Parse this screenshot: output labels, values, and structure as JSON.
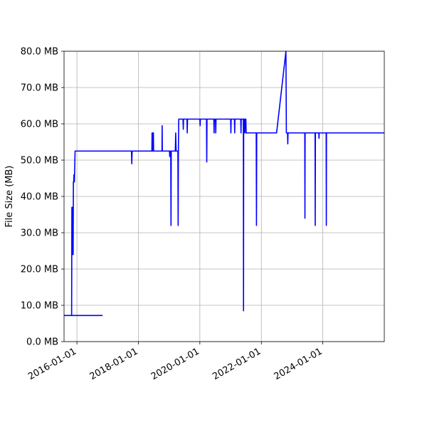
{
  "chart_data": {
    "type": "line",
    "title": "",
    "xlabel": "",
    "ylabel": "File Size (MB)",
    "x_axis_type": "date",
    "xlim": [
      "2015-08-01",
      "2026-01-01"
    ],
    "ylim": [
      0,
      80
    ],
    "grid": true,
    "legend": "none",
    "color": "#0000ff",
    "y_ticks": [
      0,
      10,
      20,
      30,
      40,
      50,
      60,
      70,
      80
    ],
    "y_tick_labels": [
      "0.0 MB",
      "10.0 MB",
      "20.0 MB",
      "30.0 MB",
      "40.0 MB",
      "50.0 MB",
      "60.0 MB",
      "70.0 MB",
      "80.0 MB"
    ],
    "x_ticks": [
      "2016-01-01",
      "2018-01-01",
      "2020-01-01",
      "2022-01-01",
      "2024-01-01"
    ],
    "x_tick_labels": [
      "2016-01-01",
      "2018-01-01",
      "2020-01-01",
      "2022-01-01",
      "2024-01-01"
    ],
    "series": [
      {
        "x": [
          "2015-08-01",
          "2016-10-28",
          "2015-10-30",
          "2015-11-02",
          "2015-11-05",
          "2015-11-08",
          "2015-11-11",
          "2015-11-14",
          "2015-11-17",
          "2015-11-20",
          "2015-11-24",
          "2015-11-27",
          "2015-12-02",
          "2015-12-10",
          "2015-12-28",
          "2016-01-15",
          "2016-01-20",
          "2016-01-25",
          "2016-02-01",
          "2016-02-10",
          "2016-02-20",
          "2017-10-10",
          "2017-10-14",
          "2017-10-18",
          "2018-06-10",
          "2018-06-12",
          "2018-06-14",
          "2018-06-16",
          "2018-06-18",
          "2018-06-20",
          "2018-06-22",
          "2018-06-24",
          "2018-06-26",
          "2018-06-28",
          "2018-06-30",
          "2018-10-08",
          "2018-10-10",
          "2018-10-12",
          "2019-01-05",
          "2019-01-08",
          "2019-01-11",
          "2019-01-20",
          "2019-01-23",
          "2019-01-26",
          "2019-03-15",
          "2019-03-20",
          "2019-03-25",
          "2019-04-15",
          "2019-04-18",
          "2019-04-21",
          "2019-04-25",
          "2019-05-05",
          "2019-06-15",
          "2019-06-18",
          "2019-06-21",
          "2019-08-01",
          "2019-08-04",
          "2019-08-07",
          "2020-01-01",
          "2020-01-04",
          "2020-01-07",
          "2020-03-20",
          "2020-03-23",
          "2020-03-26",
          "2020-06-15",
          "2020-06-18",
          "2020-06-21",
          "2020-07-05",
          "2020-07-08",
          "2020-07-11",
          "2021-01-01",
          "2021-01-04",
          "2021-01-07",
          "2021-02-15",
          "2021-02-18",
          "2021-02-21",
          "2021-05-01",
          "2021-05-04",
          "2021-05-07",
          "2021-06-01",
          "2021-06-03",
          "2021-06-05",
          "2021-06-15",
          "2021-06-18",
          "2021-06-21",
          "2021-07-01",
          "2021-07-04",
          "2021-07-07",
          "2021-07-25",
          "2021-11-01",
          "2021-11-04",
          "2021-11-07",
          "2022-07-01",
          "2022-10-20",
          "2022-10-25",
          "2022-11-08",
          "2022-11-11",
          "2022-11-14",
          "2023-06-01",
          "2023-06-03",
          "2023-06-05",
          "2023-10-01",
          "2023-10-03",
          "2023-10-05",
          "2023-11-15",
          "2023-11-17",
          "2023-11-19",
          "2024-02-10",
          "2024-02-12",
          "2024-02-14",
          "2026-01-01"
        ],
        "y": [
          7.2,
          7.2,
          7.2,
          37,
          24,
          37,
          24,
          37,
          24,
          44,
          44,
          46,
          44,
          52.5,
          52.5,
          52.5,
          52.5,
          52.5,
          52.5,
          52.5,
          52.5,
          52.5,
          49,
          52.5,
          52.5,
          57.5,
          52.5,
          57.5,
          52.5,
          57.5,
          52.5,
          57.5,
          52.5,
          57.5,
          52.5,
          52.5,
          59.5,
          52.5,
          52.5,
          51,
          52.5,
          52.5,
          32,
          52.5,
          52.5,
          57.5,
          52.5,
          52.5,
          32,
          52.5,
          61.3,
          61.3,
          61.3,
          58.5,
          61.3,
          61.3,
          57.5,
          61.3,
          61.3,
          59.5,
          61.3,
          61.3,
          49.5,
          61.3,
          61.3,
          57.5,
          61.3,
          61.3,
          57.5,
          61.3,
          61.3,
          57.5,
          61.3,
          61.3,
          57.5,
          61.3,
          61.3,
          57.5,
          61.3,
          61.3,
          8.5,
          61.3,
          61.3,
          57.5,
          61.3,
          61.3,
          57.5,
          57.5,
          57.5,
          57.5,
          32,
          57.5,
          57.5,
          80,
          57.5,
          57.5,
          54.5,
          57.5,
          57.5,
          34,
          57.5,
          57.5,
          32,
          57.5,
          57.5,
          56,
          57.5,
          57.5,
          32,
          57.5,
          57.5
        ]
      }
    ]
  }
}
